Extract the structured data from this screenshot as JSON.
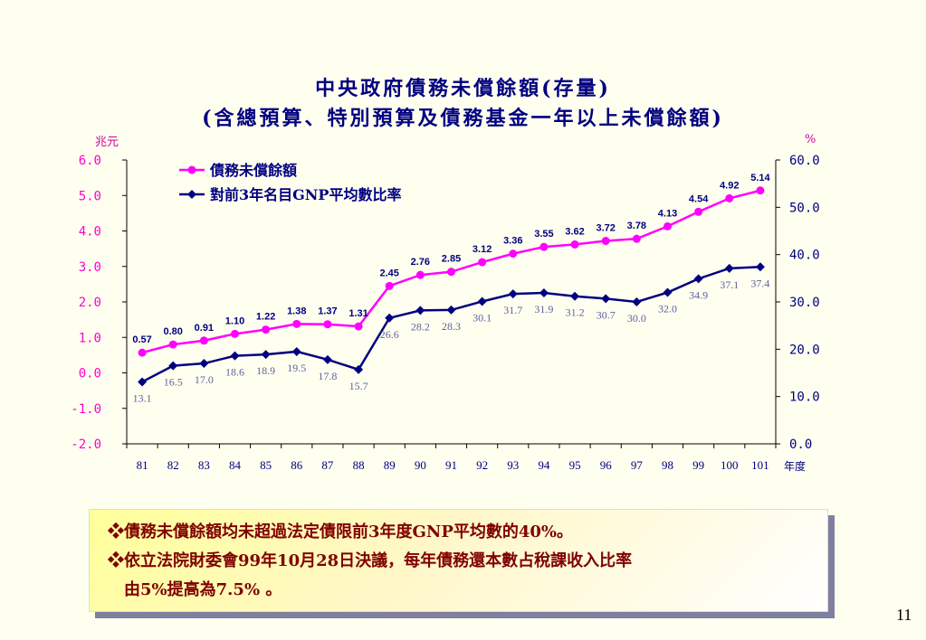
{
  "title_line1": "中央政府債務未償餘額(存量)",
  "title_line2": "(含總預算、特別預算及債務基金一年以上未償餘額)",
  "notes": [
    "❖債務未償餘額均未超過法定債限前3年度GNP平均數的40%。",
    "❖依立法院財委會99年10月28日決議，每年債務還本數占稅課收入比率",
    "由5%提高為7.5% 。"
  ],
  "page_number": "11",
  "colors": {
    "series1": "#ff00ff",
    "series2": "#000080",
    "left_axis_text": "#ff00cc",
    "title": "#000080",
    "note_text": "#800000"
  },
  "chart_data": {
    "type": "line",
    "left_unit": "兆元",
    "right_unit": "%",
    "x_unit": "年度",
    "categories": [
      "81",
      "82",
      "83",
      "84",
      "85",
      "86",
      "87",
      "88",
      "89",
      "90",
      "91",
      "92",
      "93",
      "94",
      "95",
      "96",
      "97",
      "98",
      "99",
      "100",
      "101"
    ],
    "left_ticks": [
      "6.0",
      "5.0",
      "4.0",
      "3.0",
      "2.0",
      "1.0",
      "0.0",
      "-1.0",
      "-2.0"
    ],
    "right_ticks": [
      "60.0",
      "50.0",
      "40.0",
      "30.0",
      "20.0",
      "10.0",
      "0.0"
    ],
    "ylim_left": [
      -2.0,
      6.0
    ],
    "ylim_right": [
      0.0,
      60.0
    ],
    "series": [
      {
        "name": "債務未償餘額",
        "axis": "left",
        "values": [
          0.57,
          0.8,
          0.91,
          1.1,
          1.22,
          1.38,
          1.37,
          1.31,
          2.45,
          2.76,
          2.85,
          3.12,
          3.36,
          3.55,
          3.62,
          3.72,
          3.78,
          4.13,
          4.54,
          4.92,
          5.14
        ],
        "labels": [
          "0.57",
          "0.80",
          "0.91",
          "1.10",
          "1.22",
          "1.38",
          "1.37",
          "1.31",
          "2.45",
          "2.76",
          "2.85",
          "3.12",
          "3.36",
          "3.55",
          "3.62",
          "3.72",
          "3.78",
          "4.13",
          "4.54",
          "4.92",
          "5.14"
        ]
      },
      {
        "name": "對前3年名目GNP平均數比率",
        "axis": "right",
        "values": [
          13.1,
          16.5,
          17.0,
          18.6,
          18.9,
          19.5,
          17.8,
          15.7,
          26.6,
          28.2,
          28.3,
          30.1,
          31.7,
          31.9,
          31.2,
          30.7,
          30.0,
          32.0,
          34.9,
          37.1,
          37.4
        ],
        "labels": [
          "13.1",
          "16.5",
          "17.0",
          "18.6",
          "18.9",
          "19.5",
          "17.8",
          "15.7",
          "26.6",
          "28.2",
          "28.3",
          "30.1",
          "31.7",
          "31.9",
          "31.2",
          "30.7",
          "30.0",
          "32.0",
          "34.9",
          "37.1",
          "37.4"
        ]
      }
    ],
    "legend": "top-left",
    "grid": false
  }
}
